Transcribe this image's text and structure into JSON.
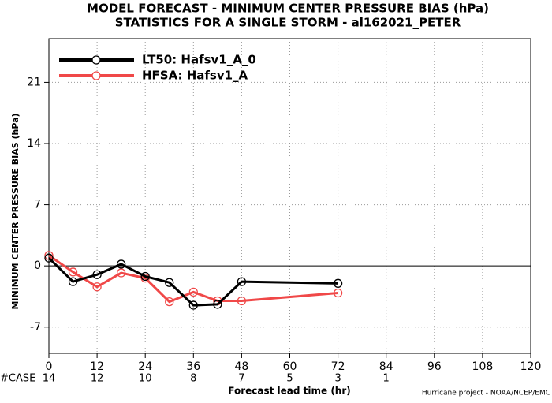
{
  "chart_data": {
    "type": "line",
    "title": "MODEL FORECAST - MINIMUM CENTER PRESSURE BIAS (hPa)",
    "subtitle": "STATISTICS FOR A SINGLE STORM - al162021_PETER",
    "y_label": "MINIMUM CENTER PRESSURE BIAS (hPa)",
    "x_label": "Forecast lead time (hr)",
    "footer": "Hurricane project - NOAA/NCEP/EMC",
    "x": [
      0,
      6,
      12,
      18,
      24,
      30,
      36,
      42,
      48,
      72
    ],
    "series": [
      {
        "name": "LT50: Hafsv1_A_0",
        "color": "#000000",
        "values": [
          0.9,
          -1.8,
          -1.0,
          0.2,
          -1.2,
          -1.9,
          -4.5,
          -4.4,
          -1.8,
          -2.0
        ]
      },
      {
        "name": "HFSA: Hafsv1_A",
        "color": "#f04848",
        "values": [
          1.2,
          -0.7,
          -2.4,
          -0.8,
          -1.4,
          -4.1,
          -3.0,
          -4.0,
          -4.0,
          -3.1
        ]
      }
    ],
    "xlim": [
      0,
      120
    ],
    "xticks": [
      0,
      12,
      24,
      36,
      48,
      60,
      72,
      84,
      96,
      108,
      120
    ],
    "ylim": [
      -10,
      26
    ],
    "yticks": [
      -7,
      0,
      7,
      14,
      21
    ],
    "grid": true,
    "legend": "upper-left",
    "case_counts": {
      "label": "#CASE",
      "color": "#20b8c8",
      "x": [
        0,
        12,
        24,
        36,
        48,
        60,
        72,
        84
      ],
      "values": [
        14,
        12,
        10,
        8,
        7,
        5,
        3,
        1
      ]
    }
  }
}
